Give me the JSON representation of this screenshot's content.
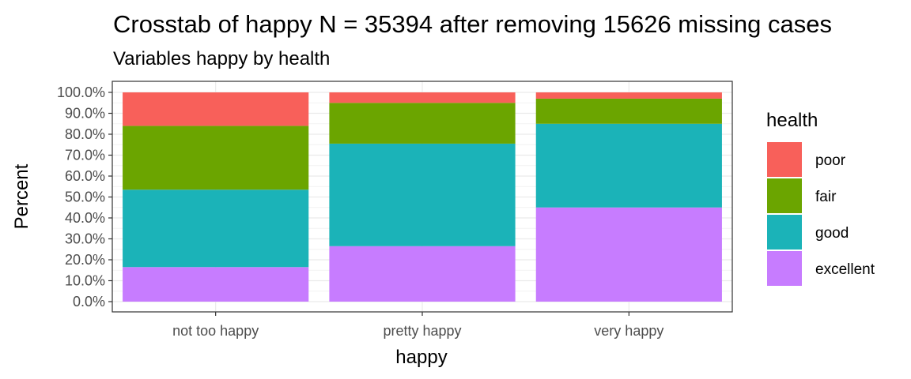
{
  "chart_data": {
    "type": "bar",
    "stacked": true,
    "title": "Crosstab of happy N = 35394 after removing 15626 missing cases",
    "subtitle": "Variables happy by health",
    "xlabel": "happy",
    "ylabel": "Percent",
    "categories": [
      "not too happy",
      "pretty happy",
      "very happy"
    ],
    "ylim": [
      0,
      100
    ],
    "y_ticks": [
      0,
      10,
      20,
      30,
      40,
      50,
      60,
      70,
      80,
      90,
      100
    ],
    "y_tick_labels": [
      "0.0%",
      "10.0%",
      "20.0%",
      "30.0%",
      "40.0%",
      "50.0%",
      "60.0%",
      "70.0%",
      "80.0%",
      "90.0%",
      "100.0%"
    ],
    "grid": true,
    "legend": {
      "title": "health",
      "position": "right"
    },
    "series": [
      {
        "name": "excellent",
        "color": "#C77CFF",
        "values": [
          16.5,
          26.5,
          45.0
        ]
      },
      {
        "name": "good",
        "color": "#1BB3B8",
        "values": [
          37.0,
          49.0,
          40.0
        ]
      },
      {
        "name": "fair",
        "color": "#6BA500",
        "values": [
          30.5,
          19.5,
          12.0
        ]
      },
      {
        "name": "poor",
        "color": "#F8605A",
        "values": [
          16.0,
          5.0,
          3.0
        ]
      }
    ]
  }
}
